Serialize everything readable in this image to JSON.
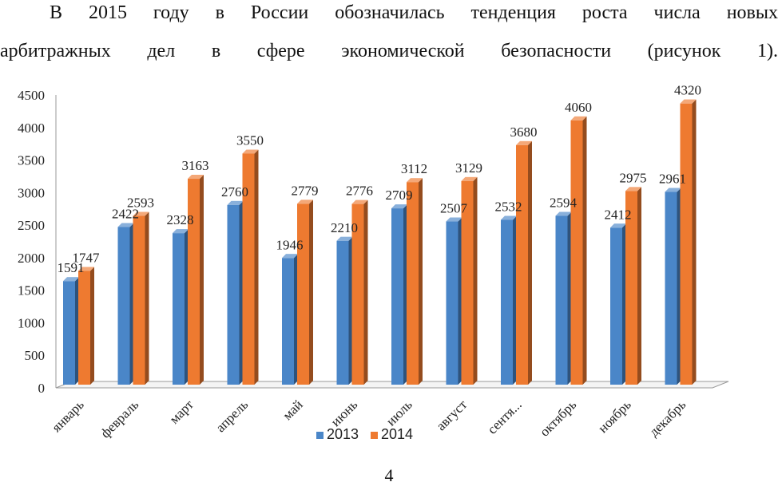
{
  "document": {
    "paragraph_line1": "В 2015 году в России обозначилась тенденция роста числа новых",
    "paragraph_line2": "арбитражных дел в сфере экономической безопасности (рисунок 1).",
    "page_number": "4"
  },
  "chart_data": {
    "type": "bar",
    "title": "",
    "xlabel": "",
    "ylabel": "",
    "ylim": [
      0,
      4500
    ],
    "yticks": [
      "0",
      "500",
      "1000",
      "1500",
      "2000",
      "2500",
      "3000",
      "3500",
      "4000",
      "4500"
    ],
    "grid": false,
    "legend_position": "bottom",
    "categories": [
      "январь",
      "февраль",
      "март",
      "апрель",
      "май",
      "июнь",
      "июль",
      "август",
      "сентя...",
      "октябрь",
      "ноябрь",
      "декабрь"
    ],
    "series": [
      {
        "name": "2013",
        "color": "#4a86c8",
        "values": [
          1591,
          2422,
          2328,
          2760,
          1946,
          2210,
          2709,
          2507,
          2532,
          2594,
          2412,
          2961
        ]
      },
      {
        "name": "2014",
        "color": "#ee7a30",
        "values": [
          1747,
          2593,
          3163,
          3550,
          2779,
          2776,
          3112,
          3129,
          3680,
          4060,
          2975,
          4320
        ]
      }
    ]
  }
}
